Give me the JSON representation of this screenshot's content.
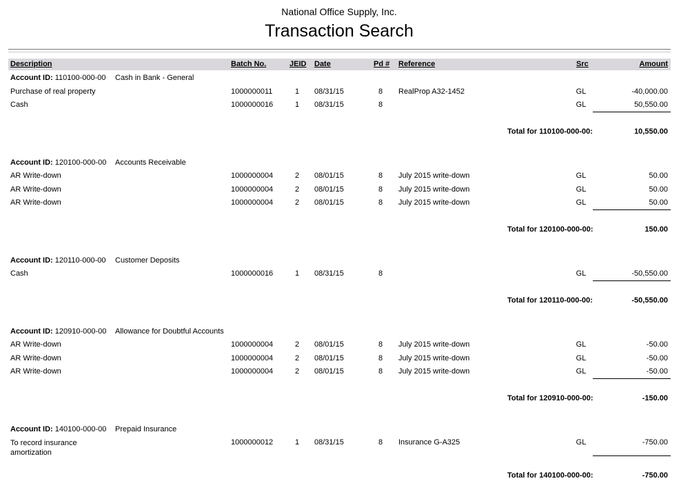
{
  "header": {
    "company": "National Office Supply, Inc.",
    "title": "Transaction Search"
  },
  "columns": {
    "description": "Description",
    "batch": "Batch No.",
    "jeid": "JEID",
    "date": "Date",
    "pd": "Pd #",
    "reference": "Reference",
    "src": "Src",
    "amount": "Amount"
  },
  "account_label": "Account ID:",
  "accounts": [
    {
      "id": "110100-000-00",
      "name": "Cash in Bank - General",
      "rows": [
        {
          "description": "Purchase of real property",
          "batch": "1000000011",
          "jeid": "1",
          "date": "08/31/15",
          "pd": "8",
          "reference": "RealProp A32-1452",
          "src": "GL",
          "amount": "-40,000.00"
        },
        {
          "description": "Cash",
          "batch": "1000000016",
          "jeid": "1",
          "date": "08/31/15",
          "pd": "8",
          "reference": "",
          "src": "GL",
          "amount": "50,550.00"
        }
      ],
      "total_label": "Total for 110100-000-00:",
      "total": "10,550.00"
    },
    {
      "id": "120100-000-00",
      "name": "Accounts Receivable",
      "rows": [
        {
          "description": "AR Write-down",
          "batch": "1000000004",
          "jeid": "2",
          "date": "08/01/15",
          "pd": "8",
          "reference": "July 2015 write-down",
          "src": "GL",
          "amount": "50.00"
        },
        {
          "description": "AR Write-down",
          "batch": "1000000004",
          "jeid": "2",
          "date": "08/01/15",
          "pd": "8",
          "reference": "July 2015 write-down",
          "src": "GL",
          "amount": "50.00"
        },
        {
          "description": "AR Write-down",
          "batch": "1000000004",
          "jeid": "2",
          "date": "08/01/15",
          "pd": "8",
          "reference": "July 2015 write-down",
          "src": "GL",
          "amount": "50.00"
        }
      ],
      "total_label": "Total for 120100-000-00:",
      "total": "150.00"
    },
    {
      "id": "120110-000-00",
      "name": "Customer Deposits",
      "rows": [
        {
          "description": "Cash",
          "batch": "1000000016",
          "jeid": "1",
          "date": "08/31/15",
          "pd": "8",
          "reference": "",
          "src": "GL",
          "amount": "-50,550.00"
        }
      ],
      "total_label": "Total for 120110-000-00:",
      "total": "-50,550.00"
    },
    {
      "id": "120910-000-00",
      "name": "Allowance for Doubtful Accounts",
      "rows": [
        {
          "description": "AR Write-down",
          "batch": "1000000004",
          "jeid": "2",
          "date": "08/01/15",
          "pd": "8",
          "reference": "July 2015 write-down",
          "src": "GL",
          "amount": "-50.00"
        },
        {
          "description": "AR Write-down",
          "batch": "1000000004",
          "jeid": "2",
          "date": "08/01/15",
          "pd": "8",
          "reference": "July 2015 write-down",
          "src": "GL",
          "amount": "-50.00"
        },
        {
          "description": "AR Write-down",
          "batch": "1000000004",
          "jeid": "2",
          "date": "08/01/15",
          "pd": "8",
          "reference": "July 2015 write-down",
          "src": "GL",
          "amount": "-50.00"
        }
      ],
      "total_label": "Total for 120910-000-00:",
      "total": "-150.00"
    },
    {
      "id": "140100-000-00",
      "name": "Prepaid Insurance",
      "rows": [
        {
          "description": "To record insurance amortization",
          "batch": "1000000012",
          "jeid": "1",
          "date": "08/31/15",
          "pd": "8",
          "reference": "Insurance G-A325",
          "src": "GL",
          "amount": "-750.00"
        }
      ],
      "total_label": "Total for 140100-000-00:",
      "total": "-750.00"
    }
  ]
}
